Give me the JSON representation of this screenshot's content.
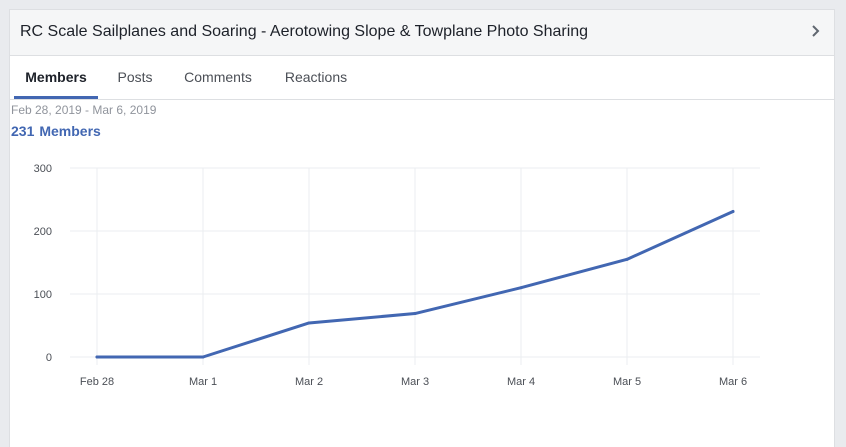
{
  "header": {
    "title": "RC Scale Sailplanes and Soaring - Aerotowing Slope & Towplane Photo Sharing"
  },
  "tabs": [
    {
      "label": "Members",
      "active": true
    },
    {
      "label": "Posts",
      "active": false
    },
    {
      "label": "Comments",
      "active": false
    },
    {
      "label": "Reactions",
      "active": false
    }
  ],
  "summary": {
    "date_range": "Feb 28, 2019 - Mar 6, 2019",
    "count": "231",
    "count_label": "Members"
  },
  "colors": {
    "accent": "#4267b2",
    "line": "#4267b2",
    "grid": "#ebedf0"
  },
  "icons": {
    "expand": "chevron-right-icon"
  },
  "chart_data": {
    "type": "line",
    "categories": [
      "Feb 28",
      "Mar 1",
      "Mar 2",
      "Mar 3",
      "Mar 4",
      "Mar 5",
      "Mar 6"
    ],
    "values": [
      0,
      0,
      54,
      69,
      110,
      155,
      231
    ],
    "ylim": [
      0,
      300
    ],
    "yticks": [
      0,
      100,
      200,
      300
    ],
    "grid": true,
    "legend": "none"
  }
}
